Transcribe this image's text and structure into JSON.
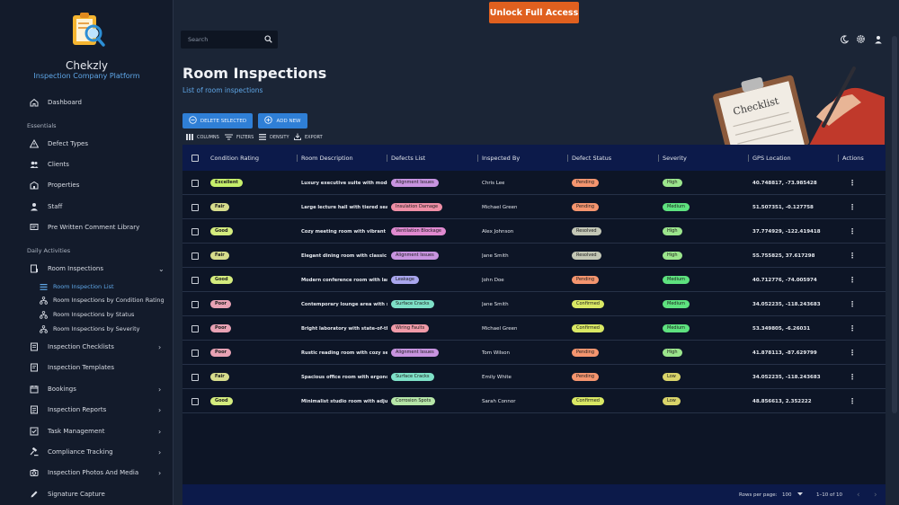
{
  "brand": {
    "name": "Chekzly",
    "tagline": "Inspection Company Platform"
  },
  "topbar": {
    "unlock_label": "Unlock Full Access",
    "search_placeholder": "Search"
  },
  "sidebar": {
    "dashboard": "Dashboard",
    "essentials_label": "Essentials",
    "essentials": [
      "Defect Types",
      "Clients",
      "Properties",
      "Staff",
      "Pre Written Comment Library"
    ],
    "daily_label": "Daily Activities",
    "room_inspections": "Room Inspections",
    "sub_items": [
      "Room Inspection List",
      "Room Inspections by Condition Rating",
      "Room Inspections by Status",
      "Room Inspections by Severity"
    ],
    "more": [
      "Inspection Checklists",
      "Inspection Templates",
      "Bookings",
      "Inspection Reports",
      "Task Management",
      "Compliance Tracking",
      "Inspection Photos And Media",
      "Signature Capture"
    ]
  },
  "page": {
    "title": "Room Inspections",
    "subtitle": "List of room inspections"
  },
  "actions": {
    "delete_label": "DELETE SELECTED",
    "add_label": "ADD NEW"
  },
  "toolbar": {
    "columns": "COLUMNS",
    "filters": "FILTERS",
    "density": "DENSITY",
    "export": "EXPORT"
  },
  "hero_text": "Checklist",
  "table": {
    "headers": [
      "Condition Rating",
      "Room Description",
      "Defects List",
      "Inspected By",
      "Defect Status",
      "Severity",
      "GPS Location",
      "Actions"
    ],
    "rows": [
      {
        "condition": "Excellent",
        "description": "Luxury executive suite with modern",
        "defect": "Alignment Issues",
        "inspector": "Chris Lee",
        "status": "Pending",
        "severity": "High",
        "gps": "40.748817, -73.985428"
      },
      {
        "condition": "Fair",
        "description": "Large lecture hall with tiered seating",
        "defect": "Insulation Damage",
        "inspector": "Michael Green",
        "status": "Pending",
        "severity": "Medium",
        "gps": "51.507351, -0.127758"
      },
      {
        "condition": "Good",
        "description": "Cozy meeting room with vibrant dec",
        "defect": "Ventilation Blockage",
        "inspector": "Alex Johnson",
        "status": "Resolved",
        "severity": "High",
        "gps": "37.774929, -122.419418"
      },
      {
        "condition": "Fair",
        "description": "Elegant dining room with classic wo",
        "defect": "Alignment Issues",
        "inspector": "Jane Smith",
        "status": "Resolved",
        "severity": "High",
        "gps": "55.755825, 37.617298"
      },
      {
        "condition": "Good",
        "description": "Modern conference room with large",
        "defect": "Leakage",
        "inspector": "John Doe",
        "status": "Pending",
        "severity": "Medium",
        "gps": "40.712776, -74.005974"
      },
      {
        "condition": "Poor",
        "description": "Contemporary lounge area with styl",
        "defect": "Surface Cracks",
        "inspector": "Jane Smith",
        "status": "Confirmed",
        "severity": "Medium",
        "gps": "34.052235, -118.243683"
      },
      {
        "condition": "Poor",
        "description": "Bright laboratory with state-of-the-a",
        "defect": "Wiring Faults",
        "inspector": "Michael Green",
        "status": "Confirmed",
        "severity": "Medium",
        "gps": "53.349805, -6.26031"
      },
      {
        "condition": "Poor",
        "description": "Rustic reading room with cozy seatin",
        "defect": "Alignment Issues",
        "inspector": "Tom Wilson",
        "status": "Pending",
        "severity": "High",
        "gps": "41.878113, -87.629799"
      },
      {
        "condition": "Fair",
        "description": "Spacious office room with ergonomi",
        "defect": "Surface Cracks",
        "inspector": "Emily White",
        "status": "Pending",
        "severity": "Low",
        "gps": "34.052235, -118.243683"
      },
      {
        "condition": "Good",
        "description": "Minimalist studio room with adjusta",
        "defect": "Corrosion Spots",
        "inspector": "Sarah Connor",
        "status": "Confirmed",
        "severity": "Low",
        "gps": "48.856613, 2.352222"
      }
    ]
  },
  "pagination": {
    "rows_label": "Rows per page:",
    "rows_value": "100",
    "range": "1–10 of 10"
  },
  "colors": {
    "cond": {
      "Excellent": "#c6ef6b",
      "Good": "#d4ec7e",
      "Fair": "#d6dc8c",
      "Poor": "#e8a2b4"
    },
    "defect": {
      "Alignment Issues": "#c894e0",
      "Insulation Damage": "#ef8fa6",
      "Ventilation Blockage": "#e08ad0",
      "Leakage": "#a9a6ee",
      "Surface Cracks": "#7ee0c7",
      "Wiring Faults": "#f09aa8",
      "Corrosion Spots": "#b6e6a8"
    },
    "status": {
      "Pending": "#f4956f",
      "Resolved": "#c3c7b6",
      "Confirmed": "#d9e864"
    },
    "severity": {
      "High": "#9be58c",
      "Medium": "#5ee27f",
      "Low": "#d9d46a"
    }
  }
}
